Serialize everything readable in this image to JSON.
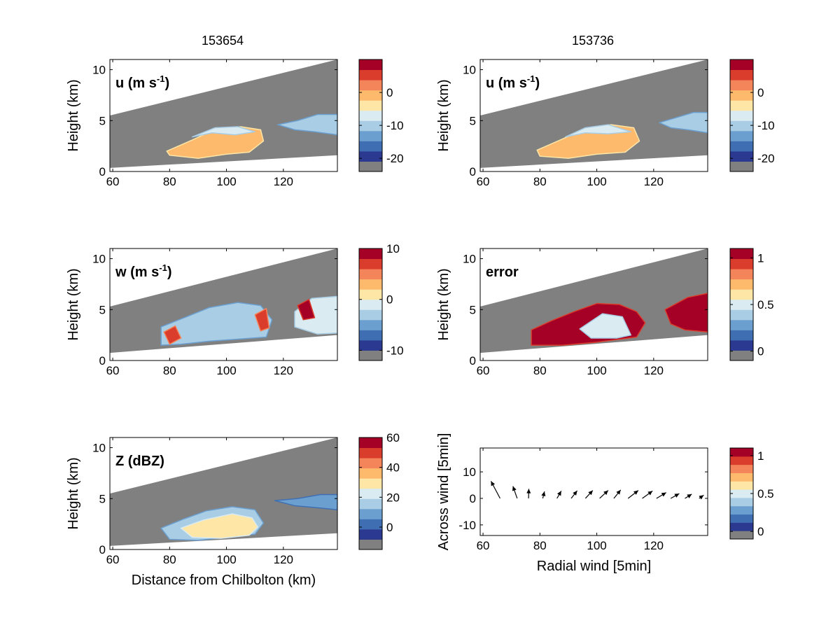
{
  "figure": {
    "titles": [
      "153654",
      "153736"
    ],
    "palette": [
      "#808080",
      "#2b3990",
      "#3f6fb2",
      "#6b9fcf",
      "#a9cde4",
      "#daecf2",
      "#fde6a6",
      "#fdb96c",
      "#f4845a",
      "#db3d2d",
      "#a50026"
    ]
  },
  "chart_data": [
    {
      "id": "u-153654",
      "type": "heatmap",
      "title": "153654",
      "label": "u (m s^-1)",
      "ylabel": "Height (km)",
      "xlabel": "",
      "xlim": [
        59,
        139
      ],
      "ylim": [
        0,
        11
      ],
      "xticks": [
        60,
        80,
        100,
        120
      ],
      "yticks": [
        0,
        5,
        10
      ],
      "ground_line": [
        [
          59,
          0.35
        ],
        [
          139,
          1.6
        ]
      ],
      "top_line": [
        [
          59,
          5.5
        ],
        [
          139,
          11
        ]
      ],
      "echo_regions": [
        {
          "x": [
            79,
            88,
            95,
            105,
            112,
            113,
            108,
            100,
            90,
            80,
            79
          ],
          "y": [
            2.0,
            3.1,
            4.0,
            4.4,
            4.1,
            3.0,
            1.9,
            1.7,
            1.3,
            1.6,
            2.0
          ],
          "class": 7
        },
        {
          "x": [
            88,
            96,
            104,
            110,
            103,
            95,
            88
          ],
          "y": [
            3.4,
            4.3,
            4.4,
            3.9,
            3.6,
            3.8,
            3.4
          ],
          "class": 5
        },
        {
          "x": [
            118,
            125,
            132,
            139,
            139,
            131,
            124,
            118
          ],
          "y": [
            4.6,
            5.0,
            5.6,
            5.6,
            3.6,
            3.9,
            4.1,
            4.6
          ],
          "class": 4
        }
      ],
      "colorbar": {
        "ticks": [
          0,
          -10,
          -20
        ],
        "range": [
          -24,
          10
        ]
      }
    },
    {
      "id": "u-153736",
      "type": "heatmap",
      "title": "153736",
      "label": "u (m s^-1)",
      "ylabel": "Height (km)",
      "xlabel": "",
      "xlim": [
        59,
        139
      ],
      "ylim": [
        0,
        11
      ],
      "xticks": [
        60,
        80,
        100,
        120
      ],
      "yticks": [
        0,
        5,
        10
      ],
      "ground_line": [
        [
          59,
          0.35
        ],
        [
          139,
          1.6
        ]
      ],
      "top_line": [
        [
          59,
          5.5
        ],
        [
          139,
          11
        ]
      ],
      "echo_regions": [
        {
          "x": [
            79,
            88,
            95,
            105,
            113,
            115,
            110,
            100,
            90,
            80,
            79
          ],
          "y": [
            2.1,
            3.2,
            4.1,
            4.6,
            4.3,
            3.0,
            1.9,
            1.7,
            1.3,
            1.5,
            2.1
          ],
          "class": 7
        },
        {
          "x": [
            89,
            96,
            104,
            112,
            104,
            96,
            89
          ],
          "y": [
            3.4,
            4.3,
            4.6,
            3.9,
            3.7,
            3.8,
            3.4
          ],
          "class": 5
        },
        {
          "x": [
            122,
            128,
            134,
            139,
            139,
            132,
            126,
            122
          ],
          "y": [
            4.8,
            5.3,
            5.8,
            5.8,
            3.8,
            4.1,
            4.3,
            4.8
          ],
          "class": 4
        }
      ],
      "colorbar": {
        "ticks": [
          0,
          -10,
          -20
        ],
        "range": [
          -24,
          10
        ]
      }
    },
    {
      "id": "w-153654",
      "type": "heatmap",
      "label": "w (m s^-1)",
      "ylabel": "Height (km)",
      "xlabel": "",
      "xlim": [
        59,
        139
      ],
      "ylim": [
        0,
        11
      ],
      "xticks": [
        60,
        80,
        100,
        120
      ],
      "yticks": [
        0,
        5,
        10
      ],
      "ground_line": [
        [
          59,
          0.75
        ],
        [
          139,
          2.5
        ]
      ],
      "top_line": [
        [
          59,
          5.3
        ],
        [
          139,
          11
        ]
      ],
      "echo_regions": [
        {
          "x": [
            77,
            86,
            94,
            104,
            112,
            116,
            114,
            104,
            94,
            84,
            77
          ],
          "y": [
            3.3,
            4.3,
            5.2,
            5.7,
            5.4,
            4.0,
            2.3,
            2.1,
            1.9,
            1.6,
            1.5
          ],
          "class": 4
        },
        {
          "x": [
            124,
            130,
            139,
            139,
            132,
            124
          ],
          "y": [
            4.8,
            6.1,
            6.3,
            2.7,
            2.6,
            3.3
          ],
          "class": 5
        },
        {
          "x": [
            78,
            82,
            84,
            80,
            78
          ],
          "y": [
            2.8,
            3.4,
            2.2,
            1.6,
            2.8
          ],
          "class": 9
        },
        {
          "x": [
            110,
            114,
            115,
            112,
            110
          ],
          "y": [
            4.5,
            5.1,
            3.2,
            2.9,
            4.5
          ],
          "class": 9
        },
        {
          "x": [
            125,
            129,
            131,
            127,
            125
          ],
          "y": [
            5.4,
            6.0,
            4.2,
            4.0,
            5.4
          ],
          "class": 10
        }
      ],
      "colorbar": {
        "ticks": [
          10,
          0,
          -10
        ],
        "range": [
          -12,
          10
        ]
      }
    },
    {
      "id": "error-153736",
      "type": "heatmap",
      "label": "error",
      "ylabel": "Height (km)",
      "xlabel": "",
      "xlim": [
        59,
        139
      ],
      "ylim": [
        0,
        11
      ],
      "xticks": [
        60,
        80,
        100,
        120
      ],
      "yticks": [
        0,
        5,
        10
      ],
      "ground_line": [
        [
          59,
          0.75
        ],
        [
          139,
          2.5
        ]
      ],
      "top_line": [
        [
          59,
          5.3
        ],
        [
          139,
          11
        ]
      ],
      "echo_regions": [
        {
          "x": [
            77,
            84,
            92,
            100,
            108,
            114,
            117,
            114,
            100,
            88,
            77
          ],
          "y": [
            3.0,
            3.9,
            4.8,
            5.6,
            5.5,
            4.8,
            3.7,
            2.3,
            1.8,
            1.5,
            1.5
          ],
          "class": 10
        },
        {
          "x": [
            94,
            102,
            109,
            112,
            107,
            98,
            94
          ],
          "y": [
            3.1,
            4.6,
            4.3,
            2.5,
            2.2,
            2.2,
            3.1
          ],
          "class": 5
        },
        {
          "x": [
            124,
            132,
            139,
            139,
            131,
            126,
            124
          ],
          "y": [
            5.0,
            6.2,
            6.6,
            2.8,
            3.0,
            3.6,
            5.0
          ],
          "class": 10
        }
      ],
      "colorbar": {
        "ticks": [
          1,
          0.5,
          0
        ],
        "range": [
          -0.1,
          1.1
        ]
      }
    },
    {
      "id": "z-153654",
      "type": "heatmap",
      "label": "Z (dBZ)",
      "ylabel": "Height (km)",
      "xlabel": "Distance from Chilbolton (km)",
      "xlim": [
        59,
        139
      ],
      "ylim": [
        0,
        11
      ],
      "xticks": [
        60,
        80,
        100,
        120
      ],
      "yticks": [
        0,
        5,
        10
      ],
      "ground_line": [
        [
          59,
          0.35
        ],
        [
          139,
          1.6
        ]
      ],
      "top_line": [
        [
          59,
          5.5
        ],
        [
          139,
          11
        ]
      ],
      "echo_regions": [
        {
          "x": [
            77,
            85,
            93,
            102,
            110,
            113,
            110,
            100,
            90,
            80,
            77
          ],
          "y": [
            2.1,
            3.0,
            3.8,
            4.2,
            3.9,
            2.6,
            1.5,
            1.2,
            0.9,
            1.0,
            2.1
          ],
          "class": 4
        },
        {
          "x": [
            84,
            92,
            102,
            109,
            111,
            108,
            98,
            88,
            84
          ],
          "y": [
            2.1,
            2.9,
            3.5,
            3.1,
            2.2,
            1.4,
            1.1,
            1.2,
            2.1
          ],
          "class": 6
        },
        {
          "x": [
            117,
            125,
            133,
            139,
            139,
            132,
            124,
            117
          ],
          "y": [
            4.8,
            5.0,
            5.4,
            5.4,
            3.9,
            4.1,
            4.3,
            4.8
          ],
          "class": 3
        }
      ],
      "colorbar": {
        "ticks": [
          60,
          40,
          20,
          0
        ],
        "range": [
          -15,
          60
        ]
      }
    },
    {
      "id": "wind-quiver",
      "type": "quiver",
      "label": "",
      "xlabel": "Radial wind [5min]",
      "ylabel": "Across wind [5min]",
      "xlim": [
        59,
        139
      ],
      "ylim": [
        -14,
        19
      ],
      "xticks": [
        60,
        80,
        100,
        120
      ],
      "yticks": [
        -10,
        0,
        10
      ],
      "arrows": [
        {
          "x": 66,
          "y": 0,
          "u": -3.2,
          "v": 6.5
        },
        {
          "x": 72,
          "y": 0,
          "u": -1.5,
          "v": 4.6
        },
        {
          "x": 76,
          "y": 0,
          "u": 0.1,
          "v": 3.6
        },
        {
          "x": 81,
          "y": 0,
          "u": 0.6,
          "v": 2.6
        },
        {
          "x": 86,
          "y": 0,
          "u": 1.5,
          "v": 2.8
        },
        {
          "x": 91,
          "y": 0,
          "u": 2.1,
          "v": 2.9
        },
        {
          "x": 96,
          "y": 0,
          "u": 2.6,
          "v": 3.0
        },
        {
          "x": 101,
          "y": 0,
          "u": 3.0,
          "v": 3.0
        },
        {
          "x": 106,
          "y": 0,
          "u": 2.4,
          "v": 3.2
        },
        {
          "x": 111,
          "y": 0,
          "u": 3.6,
          "v": 3.0
        },
        {
          "x": 116,
          "y": 0,
          "u": 3.6,
          "v": 2.8
        },
        {
          "x": 121,
          "y": 0,
          "u": 3.4,
          "v": 2.2
        },
        {
          "x": 126,
          "y": 0,
          "u": 3.0,
          "v": 1.8
        },
        {
          "x": 131,
          "y": 0,
          "u": 2.4,
          "v": 1.6
        },
        {
          "x": 136,
          "y": 0,
          "u": 1.6,
          "v": 1.2
        }
      ],
      "colorbar": {
        "ticks": [
          1,
          0.5,
          0
        ],
        "range": [
          -0.1,
          1.1
        ]
      }
    }
  ]
}
